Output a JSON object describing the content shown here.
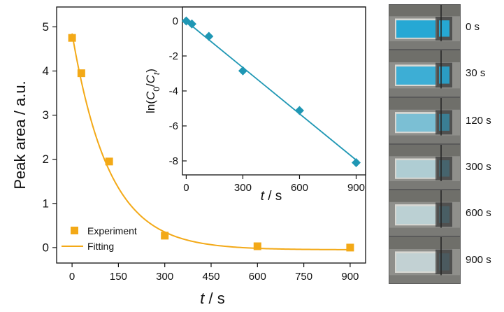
{
  "main_plot": {
    "chart_data": {
      "type": "scatter",
      "xlabel": "t / s",
      "ylabel": "Peak area / a.u.",
      "xlim": [
        -50,
        950
      ],
      "ylim": [
        -0.35,
        5.45
      ],
      "xticks": [
        0,
        150,
        300,
        450,
        600,
        750,
        900
      ],
      "yticks": [
        0,
        1,
        2,
        3,
        4,
        5
      ],
      "grid": false,
      "legend_position": "bottom-left",
      "series": [
        {
          "name": "Experiment",
          "kind": "scatter",
          "marker": "square",
          "color": "#f3a917",
          "x": [
            0,
            30,
            120,
            300,
            600,
            900
          ],
          "y": [
            4.75,
            3.95,
            1.95,
            0.27,
            0.03,
            0.0
          ]
        },
        {
          "name": "Fitting",
          "kind": "line",
          "color": "#f3a917",
          "model": "exponential decay",
          "params": {
            "y0": -0.05,
            "A": 4.9,
            "tau": 120
          }
        }
      ]
    }
  },
  "inset_plot": {
    "chart_data": {
      "type": "scatter",
      "xlabel": "t / s",
      "ylabel": "ln(C0/Ct)",
      "xlim": [
        -20,
        950
      ],
      "ylim": [
        -8.8,
        0.8
      ],
      "xticks": [
        0,
        300,
        600,
        900
      ],
      "yticks": [
        0,
        -2,
        -4,
        -6,
        -8
      ],
      "grid": false,
      "series": [
        {
          "kind": "scatter",
          "marker": "diamond",
          "color": "#1f97b4",
          "x": [
            0,
            30,
            120,
            300,
            600,
            900
          ],
          "y": [
            0.0,
            -0.17,
            -0.88,
            -2.85,
            -5.12,
            -8.1
          ]
        },
        {
          "kind": "line",
          "color": "#1f97b4",
          "model": "linear fit",
          "x": [
            -10,
            900
          ],
          "y": [
            0.07,
            -7.95
          ]
        }
      ]
    }
  },
  "photos": [
    {
      "label": "0 s",
      "blue_intensity": 1.0
    },
    {
      "label": "30 s",
      "blue_intensity": 0.85
    },
    {
      "label": "120 s",
      "blue_intensity": 0.45
    },
    {
      "label": "300 s",
      "blue_intensity": 0.12
    },
    {
      "label": "600 s",
      "blue_intensity": 0.04
    },
    {
      "label": "900 s",
      "blue_intensity": 0.0
    }
  ]
}
